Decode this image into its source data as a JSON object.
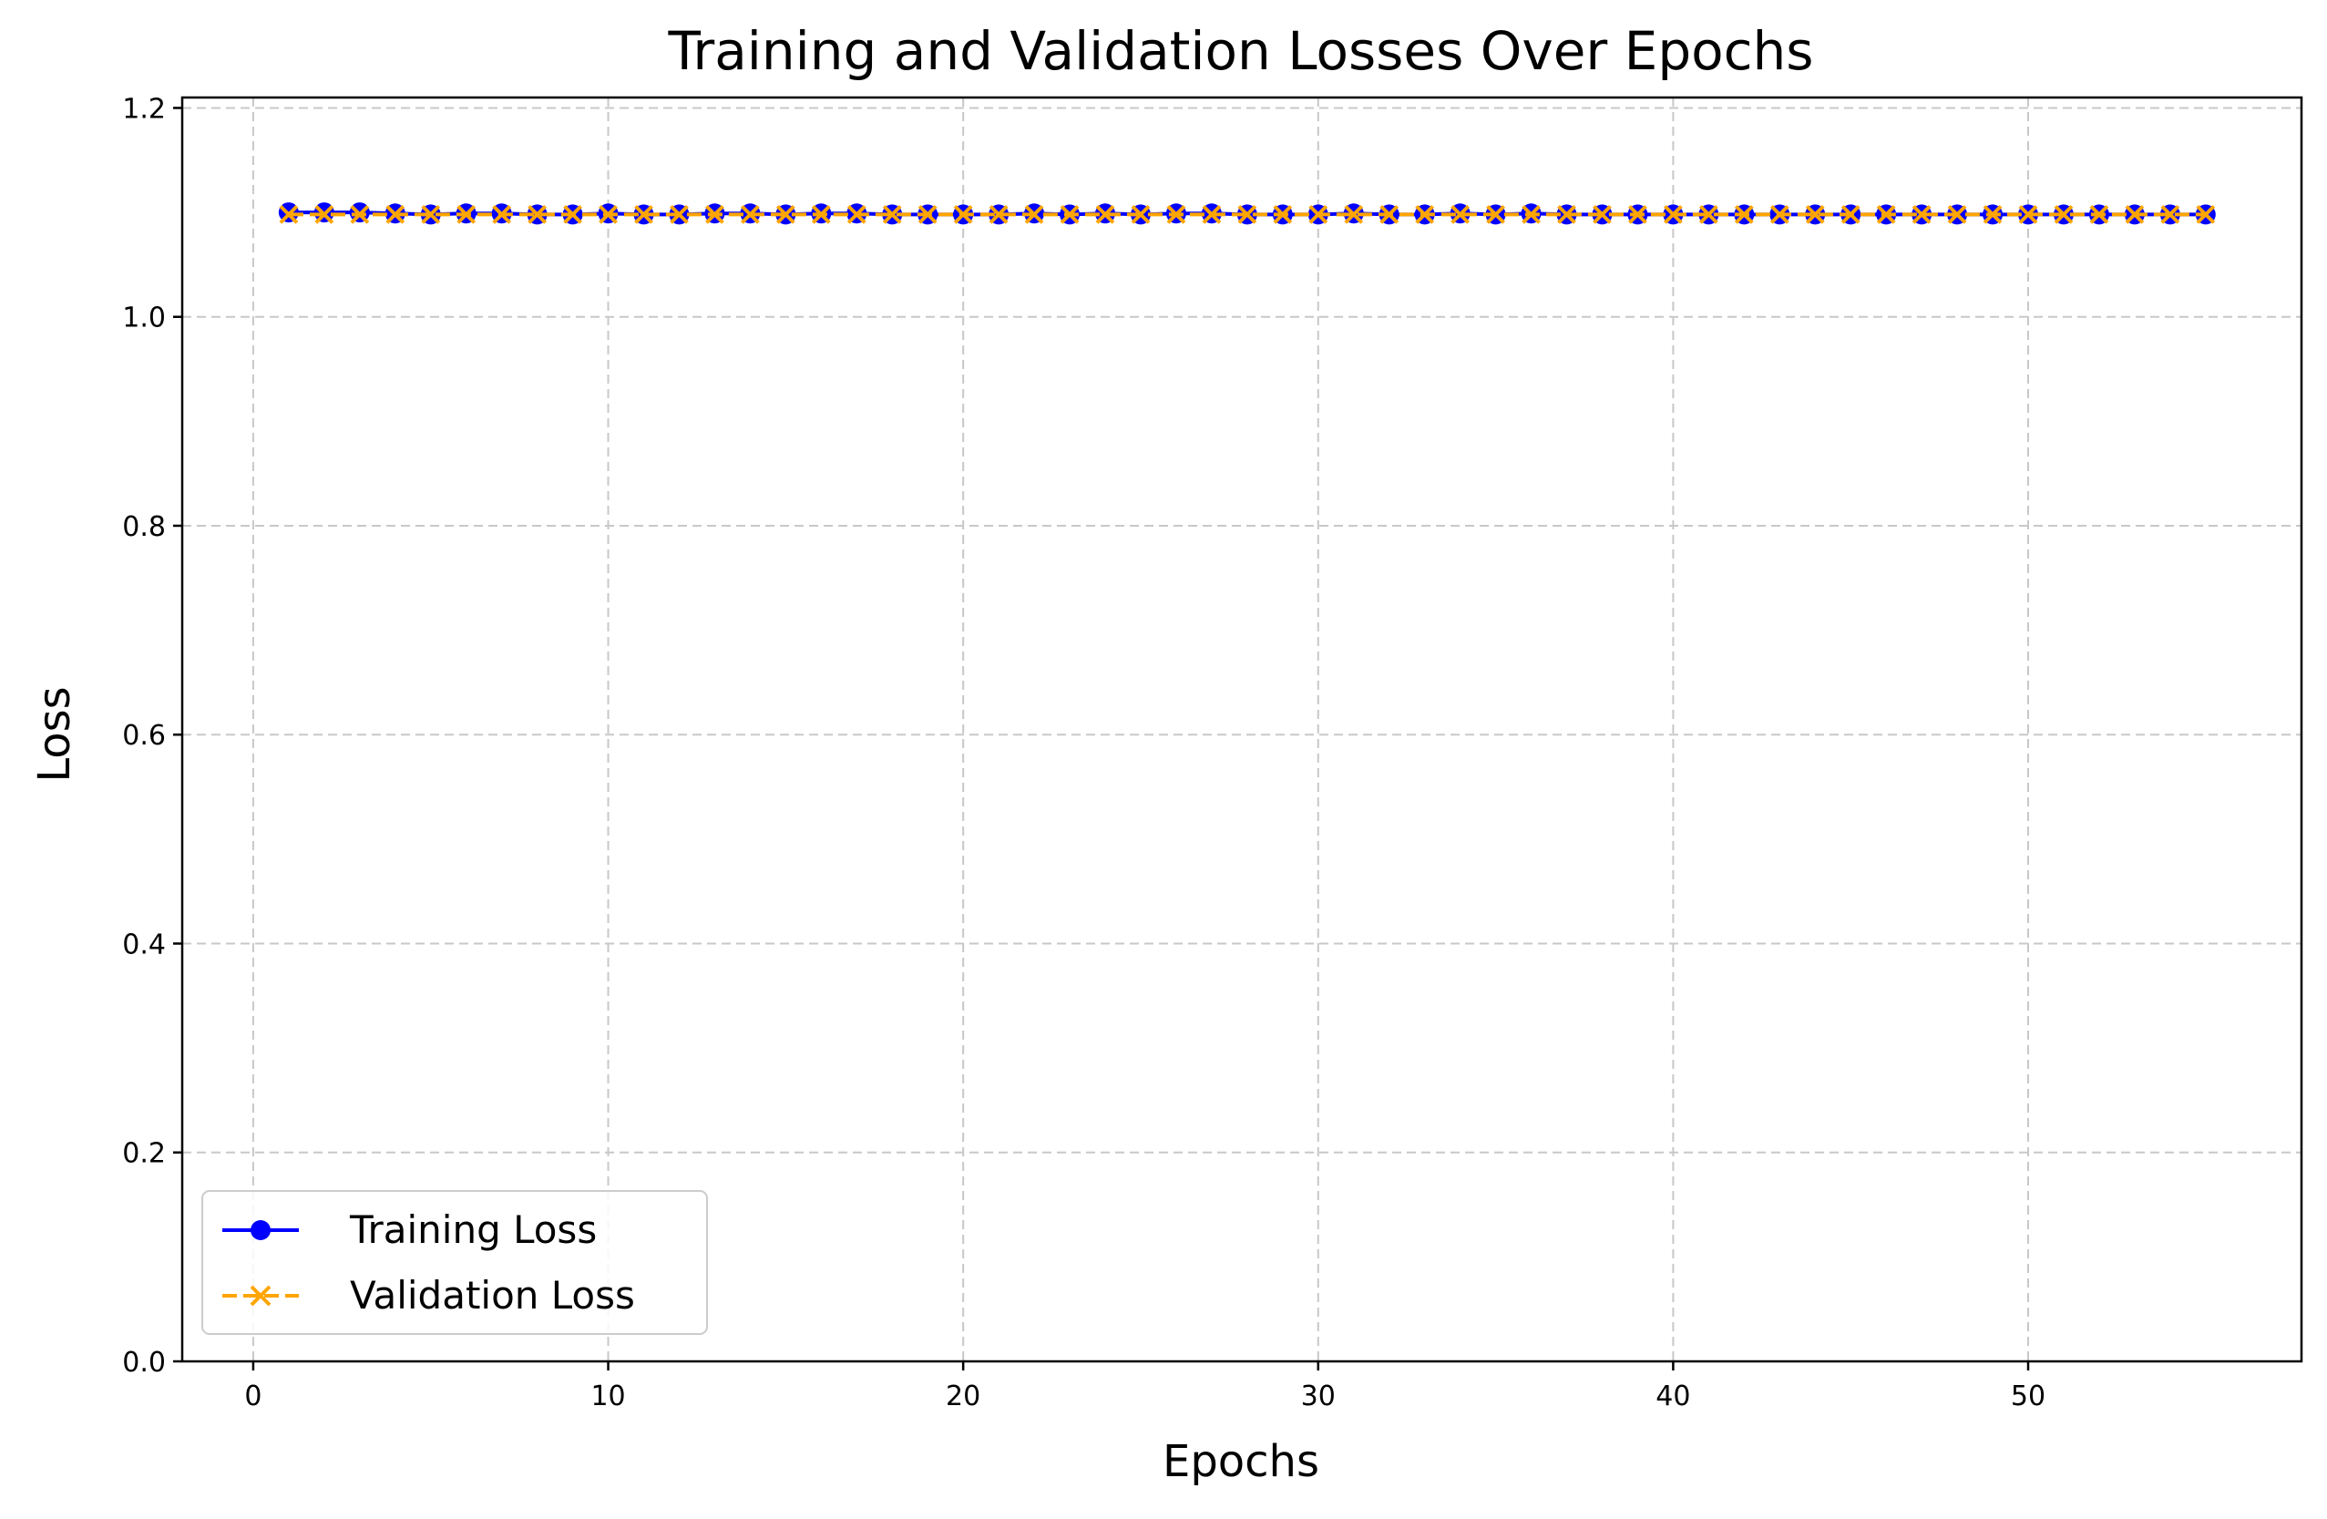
{
  "chart_data": {
    "type": "line",
    "title": "Training and Validation Losses Over Epochs",
    "xlabel": "Epochs",
    "ylabel": "Loss",
    "xlim": [
      -2,
      57.7
    ],
    "ylim": [
      0,
      1.21
    ],
    "xticks": [
      0,
      10,
      20,
      30,
      40,
      50
    ],
    "yticks": [
      0.0,
      0.2,
      0.4,
      0.6,
      0.8,
      1.0,
      1.2
    ],
    "grid": true,
    "legend_position": "lower-left",
    "x": [
      1,
      2,
      3,
      4,
      5,
      6,
      7,
      8,
      9,
      10,
      11,
      12,
      13,
      14,
      15,
      16,
      17,
      18,
      19,
      20,
      21,
      22,
      23,
      24,
      25,
      26,
      27,
      28,
      29,
      30,
      31,
      32,
      33,
      34,
      35,
      36,
      37,
      38,
      39,
      40,
      41,
      42,
      43,
      44,
      45,
      46,
      47,
      48,
      49,
      50,
      51,
      52,
      53,
      54,
      55
    ],
    "series": [
      {
        "name": "Training Loss",
        "color": "#0000ff",
        "line_style": "solid",
        "marker": "circle",
        "values": [
          1.1,
          1.1,
          1.1,
          1.099,
          1.098,
          1.099,
          1.099,
          1.098,
          1.098,
          1.099,
          1.098,
          1.098,
          1.099,
          1.099,
          1.098,
          1.099,
          1.099,
          1.098,
          1.098,
          1.098,
          1.098,
          1.099,
          1.098,
          1.099,
          1.098,
          1.099,
          1.099,
          1.098,
          1.098,
          1.098,
          1.099,
          1.098,
          1.098,
          1.099,
          1.098,
          1.099,
          1.098,
          1.098,
          1.098,
          1.098,
          1.098,
          1.098,
          1.098,
          1.098,
          1.098,
          1.098,
          1.098,
          1.098,
          1.098,
          1.098,
          1.098,
          1.098,
          1.098,
          1.098,
          1.098
        ]
      },
      {
        "name": "Validation Loss",
        "color": "#ffa500",
        "line_style": "dashed",
        "marker": "x",
        "values": [
          1.098,
          1.098,
          1.098,
          1.098,
          1.098,
          1.098,
          1.098,
          1.098,
          1.098,
          1.098,
          1.098,
          1.098,
          1.098,
          1.098,
          1.098,
          1.098,
          1.098,
          1.098,
          1.098,
          1.098,
          1.098,
          1.098,
          1.098,
          1.098,
          1.098,
          1.098,
          1.098,
          1.098,
          1.098,
          1.098,
          1.098,
          1.098,
          1.098,
          1.098,
          1.098,
          1.098,
          1.098,
          1.098,
          1.098,
          1.098,
          1.098,
          1.098,
          1.098,
          1.098,
          1.098,
          1.098,
          1.098,
          1.098,
          1.098,
          1.098,
          1.098,
          1.098,
          1.098,
          1.098,
          1.098
        ]
      }
    ]
  }
}
